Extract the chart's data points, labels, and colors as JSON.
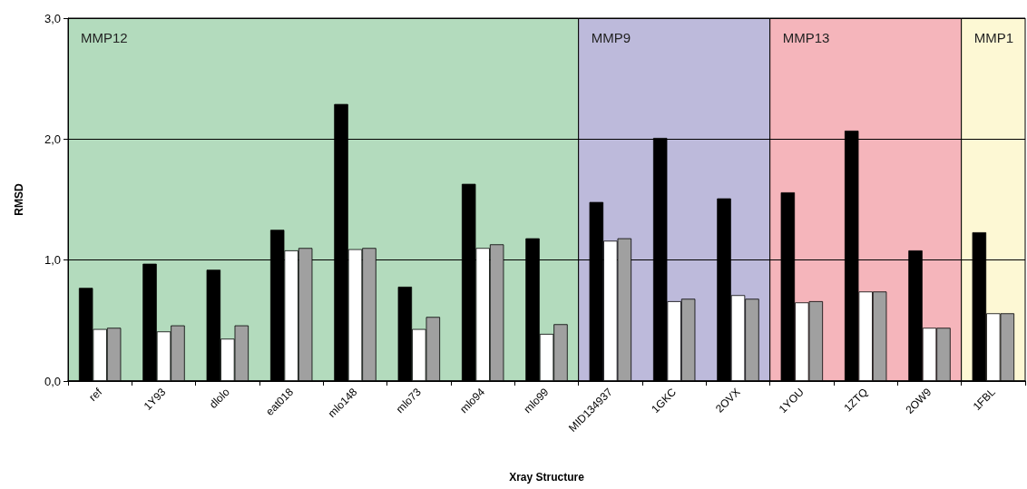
{
  "chart_data": {
    "type": "bar",
    "xlabel": "Xray Structure",
    "ylabel": "RMSD",
    "categories": [
      "ref",
      "1Y93",
      "dlolo",
      "eat018",
      "mlo148",
      "mlo73",
      "mlo94",
      "mlo99",
      "MID134937",
      "1GKC",
      "2OVX",
      "1YOU",
      "1ZTQ",
      "2OW9",
      "1FBL"
    ],
    "series": [
      {
        "color": "#000000",
        "values": [
          0.77,
          0.97,
          0.92,
          1.25,
          2.29,
          0.78,
          1.63,
          1.18,
          1.48,
          2.01,
          1.51,
          1.56,
          2.07,
          1.08,
          1.23
        ]
      },
      {
        "color": "#ffffff",
        "values": [
          0.43,
          0.41,
          0.35,
          1.08,
          1.09,
          0.43,
          1.1,
          0.39,
          1.16,
          0.66,
          0.71,
          0.65,
          0.74,
          0.44,
          0.56
        ]
      },
      {
        "color": "#a0a0a0",
        "values": [
          0.44,
          0.46,
          0.46,
          1.1,
          1.1,
          0.53,
          1.13,
          0.47,
          1.18,
          0.68,
          0.68,
          0.66,
          0.74,
          0.44,
          0.56
        ]
      }
    ],
    "ylim": [
      0,
      3
    ],
    "yticks": [
      {
        "value": 0,
        "label": "0,0"
      },
      {
        "value": 1,
        "label": "1,0"
      },
      {
        "value": 2,
        "label": "2,0"
      },
      {
        "value": 3,
        "label": "3,0"
      }
    ],
    "grid": "y",
    "bands": [
      {
        "axis": "x",
        "from": "ref",
        "to": "mlo99",
        "label": "MMP12",
        "color": "#b3dbbd"
      },
      {
        "axis": "x",
        "from": "MID134937",
        "to": "2OVX",
        "label": "MMP9",
        "color": "#bdbadb"
      },
      {
        "axis": "x",
        "from": "1YOU",
        "to": "2OW9",
        "label": "MMP13",
        "color": "#f5b5bb"
      },
      {
        "axis": "x",
        "from": "1FBL",
        "to": "1FBL",
        "label": "MMP1",
        "color": "#fdf8d4"
      }
    ]
  }
}
